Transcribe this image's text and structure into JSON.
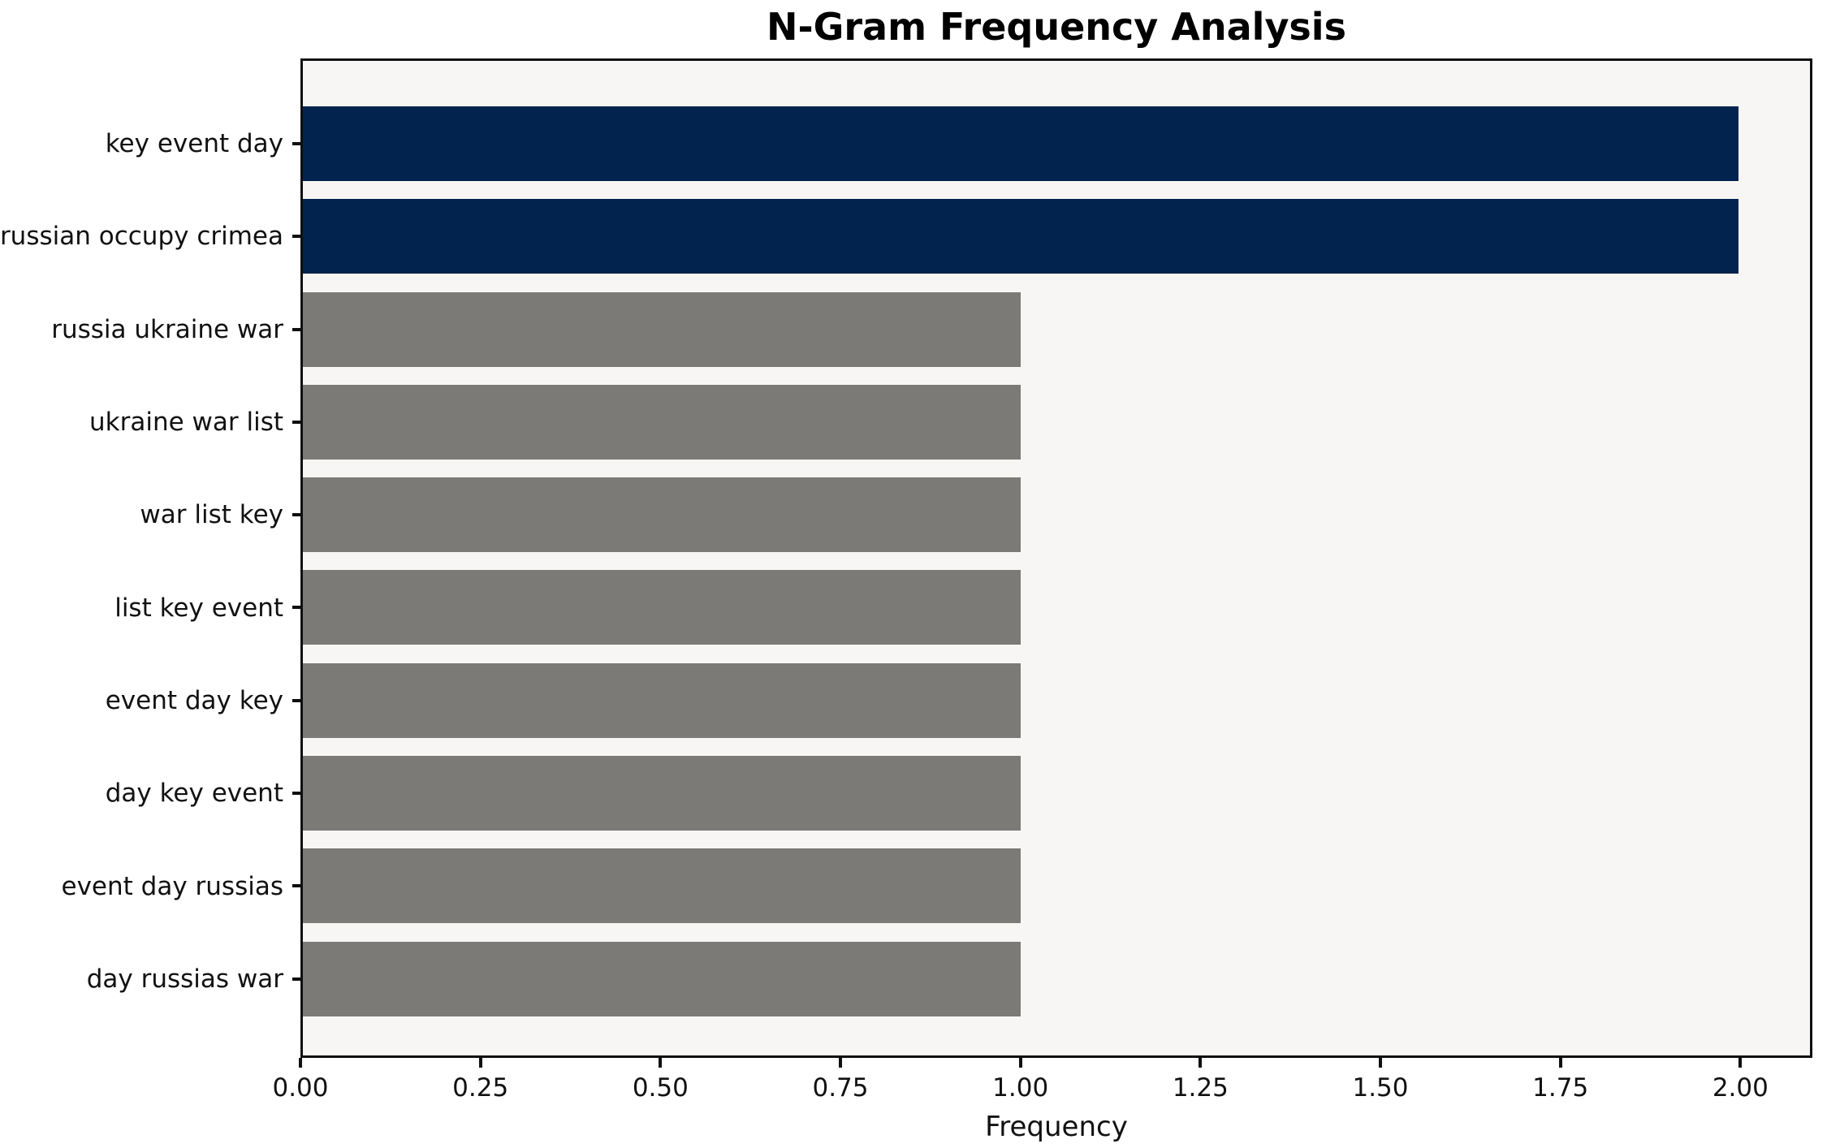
{
  "chart_data": {
    "type": "bar",
    "orientation": "horizontal",
    "title": "N-Gram Frequency Analysis",
    "xlabel": "Frequency",
    "ylabel": "",
    "categories": [
      "key event day",
      "russian occupy crimea",
      "russia ukraine war",
      "ukraine war list",
      "war list key",
      "list key event",
      "event day key",
      "day key event",
      "event day russias",
      "day russias war"
    ],
    "values": [
      2,
      2,
      1,
      1,
      1,
      1,
      1,
      1,
      1,
      1
    ],
    "bar_color_keys": [
      "highlight",
      "highlight",
      "base",
      "base",
      "base",
      "base",
      "base",
      "base",
      "base",
      "base"
    ],
    "palette": {
      "highlight": "#02234d",
      "base": "#7b7a76"
    },
    "plot_background": "#f7f6f5",
    "spine_color": "#0f0f0f",
    "xlim": [
      0,
      2.1
    ],
    "xticks": [
      {
        "label": "0.00",
        "value": 0.0
      },
      {
        "label": "0.25",
        "value": 0.25
      },
      {
        "label": "0.50",
        "value": 0.5
      },
      {
        "label": "0.75",
        "value": 0.75
      },
      {
        "label": "1.00",
        "value": 1.0
      },
      {
        "label": "1.25",
        "value": 1.25
      },
      {
        "label": "1.50",
        "value": 1.5
      },
      {
        "label": "1.75",
        "value": 1.75
      },
      {
        "label": "2.00",
        "value": 2.0
      }
    ],
    "grid": false,
    "legend": null
  }
}
